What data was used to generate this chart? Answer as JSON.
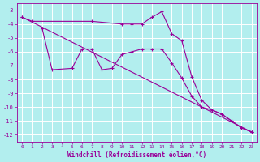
{
  "background_color": "#b2eeee",
  "grid_color": "#d0e8e8",
  "line_color": "#990099",
  "xlabel": "Windchill (Refroidissement éolien,°C)",
  "xlabel_color": "#990099",
  "tick_color": "#990099",
  "ylim": [
    -12.5,
    -2.5
  ],
  "xlim": [
    -0.5,
    23.5
  ],
  "yticks": [
    -3,
    -4,
    -5,
    -6,
    -7,
    -8,
    -9,
    -10,
    -11,
    -12
  ],
  "xticks": [
    0,
    1,
    2,
    3,
    4,
    5,
    6,
    7,
    8,
    9,
    10,
    11,
    12,
    13,
    14,
    15,
    16,
    17,
    18,
    19,
    20,
    21,
    22,
    23
  ],
  "line1_x": [
    0,
    1,
    7,
    10,
    11,
    12,
    13,
    14,
    15,
    16,
    17,
    18,
    19,
    20,
    21,
    22,
    23
  ],
  "line1_y": [
    -3.5,
    -3.8,
    -3.8,
    -4.0,
    -4.0,
    -4.0,
    -3.5,
    -3.1,
    -4.7,
    -5.2,
    -7.8,
    -9.5,
    -10.2,
    -10.5,
    -11.0,
    -11.5,
    -11.8
  ],
  "line2_x": [
    2,
    3,
    5,
    6,
    7,
    8,
    9,
    10,
    11,
    12,
    13,
    14,
    15,
    16,
    17,
    18,
    19,
    20,
    21,
    22,
    23
  ],
  "line2_y": [
    -4.3,
    -7.3,
    -7.2,
    -5.8,
    -5.8,
    -7.3,
    -7.2,
    -6.2,
    -6.0,
    -5.8,
    -5.8,
    -5.8,
    -6.8,
    -7.9,
    -9.2,
    -10.0,
    -10.2,
    -10.5,
    -11.0,
    -11.5,
    -11.8
  ],
  "line3_x": [
    0,
    23
  ],
  "line3_y": [
    -3.5,
    -11.8
  ]
}
